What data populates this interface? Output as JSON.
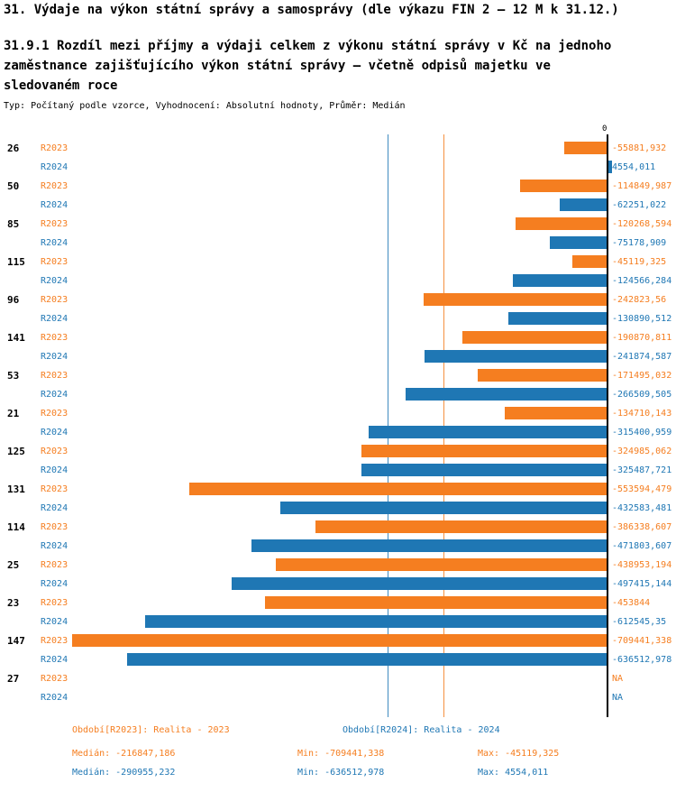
{
  "header": {
    "title": "31. Výdaje na výkon státní správy a samosprávy (dle výkazu FIN 2 – 12 M k 31.12.)",
    "subtitle": "31.9.1 Rozdíl mezi příjmy a výdaji celkem z výkonu státní správy v Kč na jednoho zaměstnance zajišťujícího výkon státní správy – včetně odpisů majetku ve sledovaném roce",
    "meta": "Typ: Počítaný podle vzorce, Vyhodnocení: Absolutní hodnoty, Průměr: Medián"
  },
  "chart_data": {
    "type": "bar",
    "orientation": "horizontal",
    "zero_label": "0",
    "axis": {
      "min": -709441.338,
      "max": 4554.011
    },
    "grid": false,
    "legend_position": "bottom",
    "series": [
      {
        "name": "R2023",
        "color": "#F57E20",
        "period_label": "Období[R2023]: Realita - 2023",
        "median": -216847.186,
        "median_display": "Medián: -216847,186",
        "min_display": "Min: -709441,338",
        "max_display": "Max: -45119,325"
      },
      {
        "name": "R2024",
        "color": "#1F77B4",
        "period_label": "Období[R2024]: Realita - 2024",
        "median": -290955.232,
        "median_display": "Medián: -290955,232",
        "min_display": "Min: -636512,978",
        "max_display": "Max: 4554,011"
      }
    ],
    "rows": [
      {
        "category": "26",
        "values": [
          -55881.932,
          4554.011
        ],
        "displays": [
          "-55881,932",
          "4554,011"
        ]
      },
      {
        "category": "50",
        "values": [
          -114849.987,
          -62251.022
        ],
        "displays": [
          "-114849,987",
          "-62251,022"
        ]
      },
      {
        "category": "85",
        "values": [
          -120268.594,
          -75178.909
        ],
        "displays": [
          "-120268,594",
          "-75178,909"
        ]
      },
      {
        "category": "115",
        "values": [
          -45119.325,
          -124566.284
        ],
        "displays": [
          "-45119,325",
          "-124566,284"
        ]
      },
      {
        "category": "96",
        "values": [
          -242823.56,
          -130890.512
        ],
        "displays": [
          "-242823,56",
          "-130890,512"
        ]
      },
      {
        "category": "141",
        "values": [
          -190870.811,
          -241874.587
        ],
        "displays": [
          "-190870,811",
          "-241874,587"
        ]
      },
      {
        "category": "53",
        "values": [
          -171495.032,
          -266509.505
        ],
        "displays": [
          "-171495,032",
          "-266509,505"
        ]
      },
      {
        "category": "21",
        "values": [
          -134710.143,
          -315400.959
        ],
        "displays": [
          "-134710,143",
          "-315400,959"
        ]
      },
      {
        "category": "125",
        "values": [
          -324985.062,
          -325487.721
        ],
        "displays": [
          "-324985,062",
          "-325487,721"
        ]
      },
      {
        "category": "131",
        "values": [
          -553594.479,
          -432583.481
        ],
        "displays": [
          "-553594,479",
          "-432583,481"
        ]
      },
      {
        "category": "114",
        "values": [
          -386338.607,
          -471803.607
        ],
        "displays": [
          "-386338,607",
          "-471803,607"
        ]
      },
      {
        "category": "25",
        "values": [
          -438953.194,
          -497415.144
        ],
        "displays": [
          "-438953,194",
          "-497415,144"
        ]
      },
      {
        "category": "23",
        "values": [
          -453844,
          -612545.35
        ],
        "displays": [
          "-453844",
          "-612545,35"
        ]
      },
      {
        "category": "147",
        "values": [
          -709441.338,
          -636512.978
        ],
        "displays": [
          "-709441,338",
          "-636512,978"
        ]
      },
      {
        "category": "27",
        "values": [
          null,
          null
        ],
        "displays": [
          "NA",
          "NA"
        ]
      }
    ]
  }
}
